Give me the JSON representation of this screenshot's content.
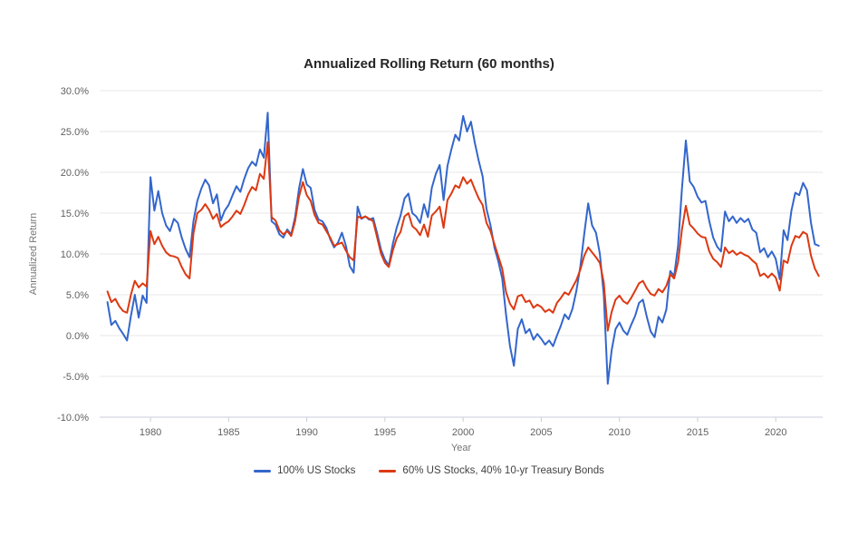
{
  "chart_data": {
    "type": "line",
    "title": "Annualized Rolling Return (60 months)",
    "xlabel": "Year",
    "ylabel": "Annualized Return",
    "grid": true,
    "legend_position": "bottom",
    "xlim": [
      1976.75,
      2023.0
    ],
    "ylim": [
      -10,
      30
    ],
    "x_ticks": [
      1980,
      1985,
      1990,
      1995,
      2000,
      2005,
      2010,
      2015,
      2020
    ],
    "y_ticks": [
      {
        "value": 30,
        "label": "30.0%"
      },
      {
        "value": 25,
        "label": "25.0%"
      },
      {
        "value": 20,
        "label": "20.0%"
      },
      {
        "value": 15,
        "label": "15.0%"
      },
      {
        "value": 10,
        "label": "10.0%"
      },
      {
        "value": 5,
        "label": "5.0%"
      },
      {
        "value": 0,
        "label": "0.0%"
      },
      {
        "value": -5,
        "label": "-5.0%"
      },
      {
        "value": -10,
        "label": "-10.0%"
      }
    ],
    "x_start": 1977.25,
    "x_step": 0.25,
    "series": [
      {
        "name": "100% US Stocks",
        "color": "#3366cc",
        "values": [
          4.1,
          1.3,
          1.8,
          0.9,
          0.2,
          -0.6,
          2.4,
          5.0,
          2.2,
          4.9,
          4.0,
          19.4,
          15.3,
          17.7,
          15.0,
          13.5,
          12.8,
          14.3,
          13.8,
          12.0,
          10.6,
          9.6,
          14.0,
          16.5,
          18.0,
          19.1,
          18.4,
          16.2,
          17.3,
          14.1,
          15.3,
          16.0,
          17.2,
          18.3,
          17.6,
          19.2,
          20.5,
          21.3,
          20.8,
          22.8,
          21.8,
          27.3,
          14.0,
          13.6,
          12.4,
          12.0,
          13.0,
          12.4,
          14.5,
          18.0,
          20.4,
          18.5,
          18.1,
          15.4,
          14.2,
          14.0,
          13.2,
          11.8,
          10.8,
          11.4,
          12.6,
          11.0,
          8.5,
          7.7,
          15.8,
          14.3,
          14.6,
          14.2,
          14.4,
          12.5,
          10.5,
          9.3,
          8.6,
          11.2,
          13.2,
          14.7,
          16.8,
          17.4,
          15.0,
          14.6,
          13.8,
          16.1,
          14.5,
          18.1,
          19.8,
          20.9,
          16.6,
          20.8,
          22.8,
          24.6,
          23.9,
          26.9,
          25.0,
          26.2,
          23.6,
          21.4,
          19.5,
          15.5,
          13.5,
          10.8,
          9.1,
          7.0,
          2.5,
          -1.3,
          -3.7,
          0.8,
          2.0,
          0.3,
          0.8,
          -0.5,
          0.2,
          -0.4,
          -1.1,
          -0.6,
          -1.3,
          0.0,
          1.2,
          2.6,
          2.0,
          3.3,
          5.5,
          8.5,
          12.5,
          16.2,
          13.5,
          12.6,
          10.0,
          5.0,
          -5.9,
          -1.8,
          0.8,
          1.6,
          0.6,
          0.1,
          1.3,
          2.4,
          4.0,
          4.4,
          2.3,
          0.5,
          -0.2,
          2.3,
          1.6,
          3.2,
          7.9,
          7.3,
          11.0,
          18.0,
          23.9,
          18.9,
          18.2,
          17.0,
          16.3,
          16.5,
          14.0,
          12.0,
          10.9,
          10.3,
          15.2,
          14.0,
          14.6,
          13.8,
          14.4,
          13.9,
          14.3,
          13.0,
          12.6,
          10.2,
          10.7,
          9.6,
          10.3,
          9.4,
          6.9,
          12.9,
          11.7,
          15.3,
          17.5,
          17.2,
          18.7,
          17.8,
          13.8,
          11.2,
          11.0
        ]
      },
      {
        "name": "60% US Stocks, 40% 10-yr Treasury Bonds",
        "color": "#dc3912",
        "values": [
          5.4,
          4.1,
          4.5,
          3.6,
          3.0,
          2.8,
          5.0,
          6.7,
          5.9,
          6.4,
          6.0,
          12.8,
          11.2,
          12.1,
          11.0,
          10.2,
          9.8,
          9.7,
          9.5,
          8.4,
          7.5,
          7.0,
          12.5,
          15.0,
          15.4,
          16.1,
          15.4,
          14.3,
          14.9,
          13.3,
          13.7,
          14.0,
          14.6,
          15.3,
          14.9,
          16.0,
          17.3,
          18.2,
          17.8,
          19.8,
          19.2,
          23.7,
          14.5,
          14.1,
          12.9,
          12.4,
          12.8,
          12.2,
          14.0,
          17.0,
          18.8,
          17.2,
          16.5,
          14.8,
          13.8,
          13.6,
          12.8,
          12.0,
          11.0,
          11.2,
          11.4,
          10.4,
          9.6,
          9.2,
          14.6,
          14.4,
          14.6,
          14.3,
          14.0,
          12.0,
          10.0,
          8.9,
          8.4,
          10.4,
          11.9,
          12.7,
          14.6,
          15.0,
          13.4,
          13.0,
          12.3,
          13.6,
          12.1,
          14.7,
          15.2,
          15.8,
          13.2,
          16.6,
          17.4,
          18.4,
          18.1,
          19.4,
          18.6,
          19.1,
          17.9,
          16.8,
          16.0,
          13.8,
          12.8,
          11.2,
          9.7,
          8.2,
          5.3,
          3.9,
          3.2,
          4.8,
          5.0,
          4.1,
          4.3,
          3.4,
          3.8,
          3.5,
          2.9,
          3.2,
          2.8,
          4.0,
          4.6,
          5.3,
          5.0,
          5.9,
          6.8,
          8.1,
          9.8,
          10.8,
          10.2,
          9.6,
          8.9,
          6.5,
          0.6,
          2.9,
          4.4,
          4.9,
          4.2,
          3.9,
          4.6,
          5.5,
          6.4,
          6.7,
          5.8,
          5.1,
          4.9,
          5.7,
          5.3,
          6.1,
          7.5,
          7.0,
          9.0,
          13.0,
          15.9,
          13.6,
          13.1,
          12.5,
          12.1,
          12.0,
          10.3,
          9.4,
          9.0,
          8.4,
          10.8,
          10.1,
          10.4,
          9.9,
          10.2,
          9.9,
          9.7,
          9.2,
          8.8,
          7.3,
          7.6,
          7.1,
          7.6,
          7.1,
          5.5,
          9.2,
          8.9,
          11.0,
          12.2,
          12.0,
          12.7,
          12.4,
          9.8,
          8.2,
          7.3
        ]
      }
    ]
  }
}
